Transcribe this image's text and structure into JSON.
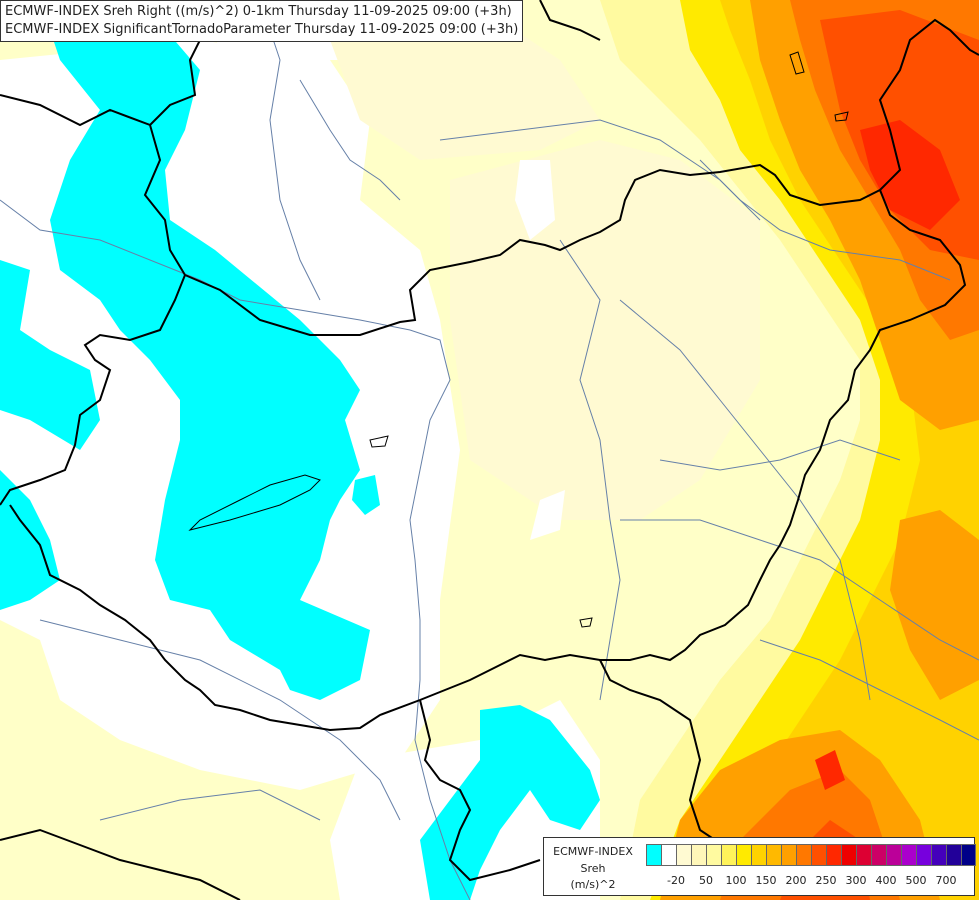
{
  "title": {
    "line1": "ECMWF-INDEX Sreh Right ((m/s)^2) 0-1km Thursday 11-09-2025 09:00 (+3h)",
    "line2": "ECMWF-INDEX SignificantTornadoParameter Thursday 11-09-2025 09:00 (+3h)"
  },
  "legend": {
    "model": "ECMWF-INDEX",
    "variable": "Sreh",
    "unit": "(m/s)^2",
    "ticks": [
      "-20",
      "50",
      "100",
      "150",
      "200",
      "250",
      "300",
      "400",
      "500",
      "700"
    ],
    "colors": [
      "#00ffff",
      "#ffffff",
      "#fffad2",
      "#fff7b9",
      "#fffaa0",
      "#fff35a",
      "#ffea00",
      "#ffd200",
      "#ffb900",
      "#ffa000",
      "#ff7800",
      "#ff5000",
      "#ff2800",
      "#ee0000",
      "#dd0033",
      "#cc0066",
      "#bb0099",
      "#aa00cc",
      "#7700dd",
      "#4400bb",
      "#220099",
      "#000088"
    ]
  },
  "map": {
    "colors": {
      "cyan": "#00ffff",
      "white": "#ffffff",
      "pale_yellow": "#ffffc8",
      "light_yellow": "#fffaa0",
      "yellow": "#ffea00",
      "gold": "#ffd200",
      "orange": "#ffa000",
      "dark_orange": "#ff7800",
      "red_orange": "#ff5000",
      "red": "#ff2800",
      "border": "#000000",
      "river": "#6680a8"
    }
  }
}
